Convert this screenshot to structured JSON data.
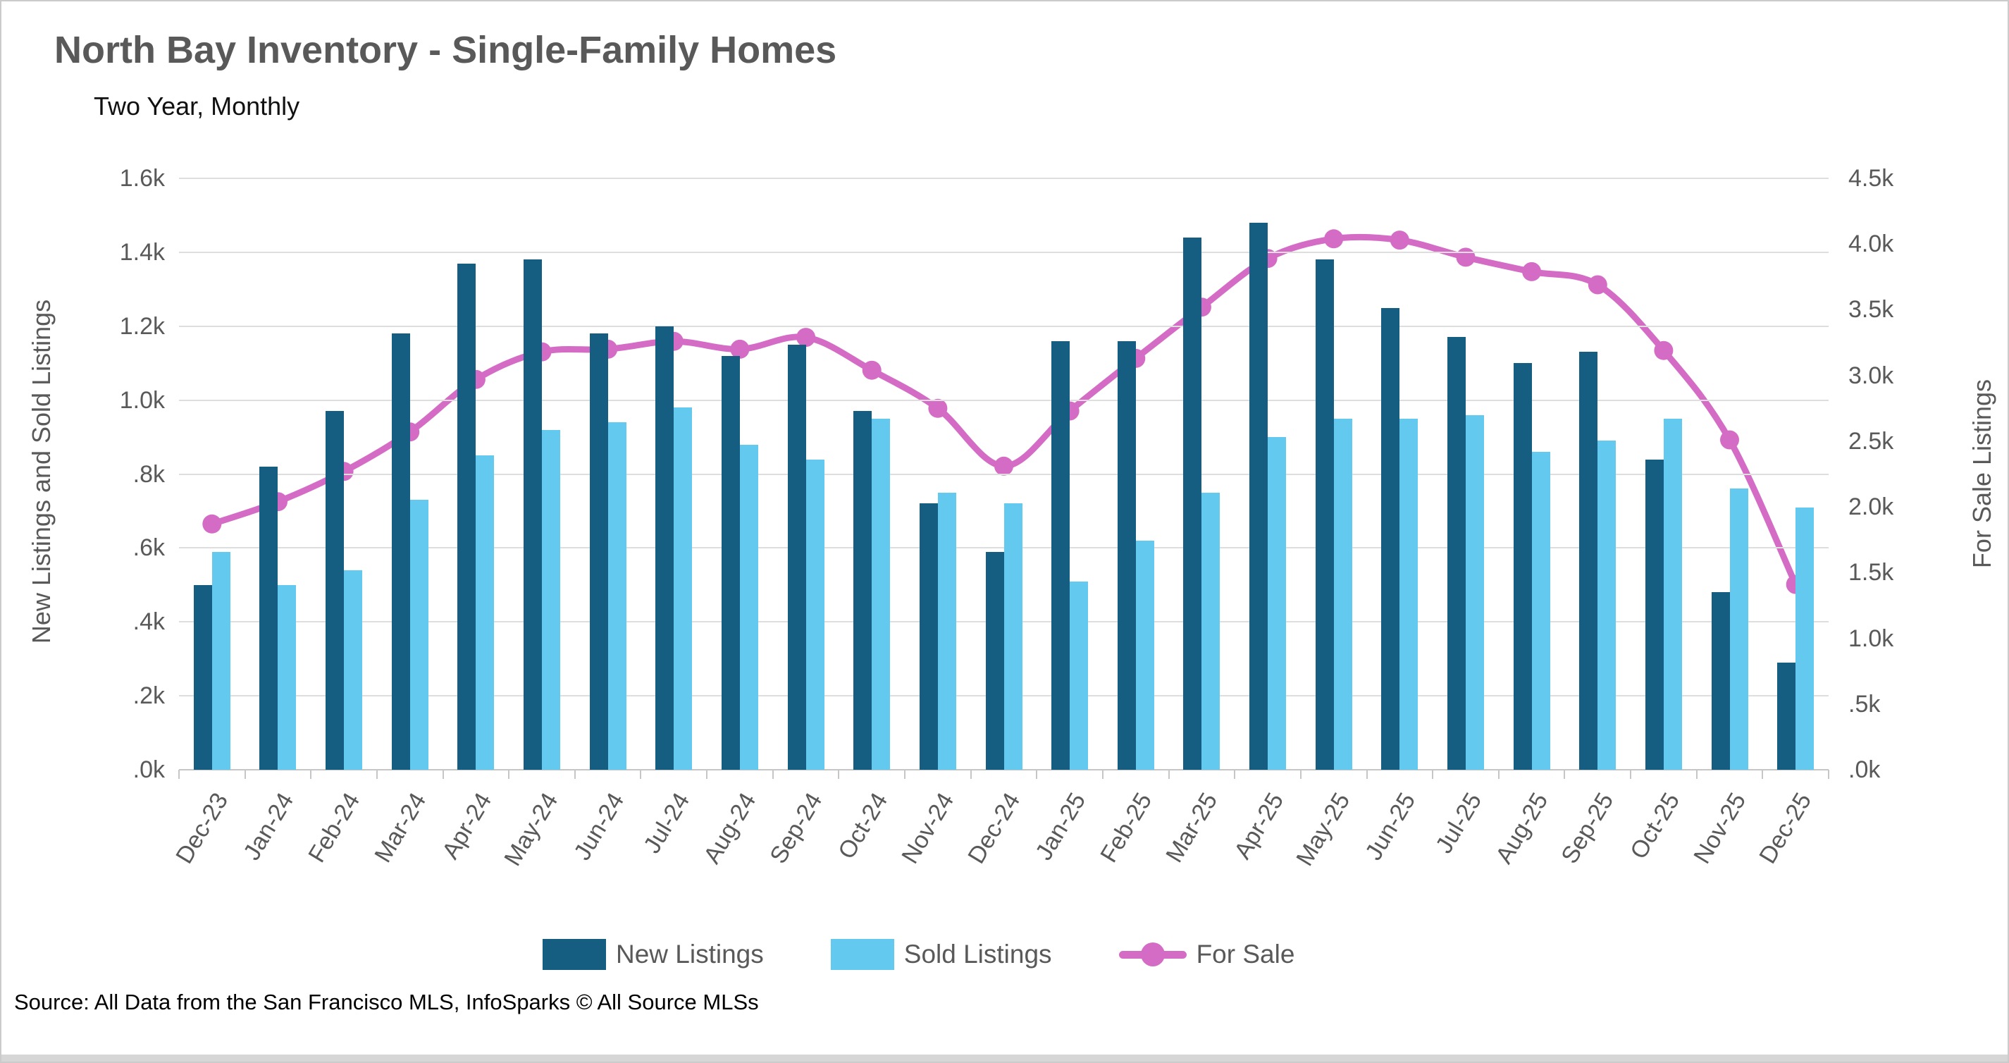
{
  "header": {
    "title": "North Bay Inventory - Single-Family Homes",
    "subtitle": "Two Year, Monthly"
  },
  "footer": {
    "source": "Source: All Data from the San Francisco MLS, InfoSparks © All Source MLSs"
  },
  "legend": [
    {
      "label": "New Listings",
      "type": "bar",
      "color": "#155d81"
    },
    {
      "label": "Sold Listings",
      "type": "bar",
      "color": "#63c9ef"
    },
    {
      "label": "For Sale",
      "type": "line",
      "color": "#d46cc6"
    }
  ],
  "colors": {
    "new_listings": "#155d81",
    "sold_listings": "#63c9ef",
    "for_sale": "#d46cc6",
    "gridline": "#dedede",
    "axis_line": "#c6c6c6",
    "tick_text": "#595959",
    "title_text": "#595959"
  },
  "chart_data": {
    "type": "bar",
    "subtype": "grouped bars with overlay line on secondary axis",
    "title": "North Bay Inventory - Single-Family Homes",
    "subtitle": "Two Year, Monthly",
    "units": "thousands of listings (k)",
    "grid": true,
    "legend_position": "bottom",
    "categories": [
      "Dec-23",
      "Jan-24",
      "Feb-24",
      "Mar-24",
      "Apr-24",
      "May-24",
      "Jun-24",
      "Jul-24",
      "Aug-24",
      "Sep-24",
      "Oct-24",
      "Nov-24",
      "Dec-24",
      "Jan-25",
      "Feb-25",
      "Mar-25",
      "Apr-25",
      "May-25",
      "Jun-25",
      "Jul-25",
      "Aug-25",
      "Sep-25",
      "Oct-25",
      "Nov-25",
      "Dec-25"
    ],
    "series": [
      {
        "name": "New Listings",
        "type": "bar",
        "axis": "left",
        "color": "#155d81",
        "values": [
          0.5,
          0.82,
          0.97,
          1.18,
          1.37,
          1.38,
          1.18,
          1.2,
          1.12,
          1.15,
          0.97,
          0.72,
          0.59,
          1.16,
          1.16,
          1.44,
          1.48,
          1.38,
          1.25,
          1.17,
          1.1,
          1.13,
          0.84,
          0.48,
          0.29
        ]
      },
      {
        "name": "Sold Listings",
        "type": "bar",
        "axis": "left",
        "color": "#63c9ef",
        "values": [
          0.59,
          0.5,
          0.54,
          0.73,
          0.85,
          0.92,
          0.94,
          0.98,
          0.88,
          0.84,
          0.95,
          0.75,
          0.72,
          0.51,
          0.62,
          0.75,
          0.9,
          0.95,
          0.95,
          0.96,
          0.86,
          0.89,
          0.95,
          0.76,
          0.71
        ]
      },
      {
        "name": "For Sale",
        "type": "line",
        "axis": "right",
        "color": "#d46cc6",
        "values": [
          1.87,
          2.04,
          2.27,
          2.57,
          2.97,
          3.18,
          3.2,
          3.26,
          3.2,
          3.29,
          3.04,
          2.75,
          2.31,
          2.73,
          3.13,
          3.52,
          3.89,
          4.04,
          4.03,
          3.9,
          3.79,
          3.69,
          3.19,
          2.51,
          1.41
        ]
      }
    ],
    "left_axis": {
      "label": "New Listings and Sold Listings",
      "min": 0,
      "max": 1.6,
      "tick_labels": [
        "1.6k",
        "1.4k",
        "1.2k",
        "1.0k",
        ".8k",
        ".6k",
        ".4k",
        ".2k",
        ".0k"
      ]
    },
    "right_axis": {
      "label": "For Sale Listings",
      "min": 0,
      "max": 4.5,
      "tick_labels": [
        "4.5k",
        "4.0k",
        "3.5k",
        "3.0k",
        "2.5k",
        "2.0k",
        "1.5k",
        "1.0k",
        ".5k",
        ".0k"
      ]
    }
  }
}
